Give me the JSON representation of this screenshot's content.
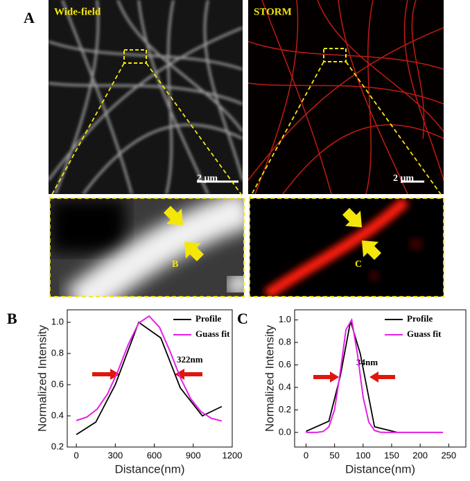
{
  "figure": {
    "panel_a": {
      "label": "A",
      "left_title": "Wide-field",
      "right_title": "STORM",
      "scale_left": "2 μm",
      "scale_right": "2 μm",
      "zoom_left_label": "B",
      "zoom_right_label": "C"
    }
  },
  "chart_data": [
    {
      "type": "line",
      "panel_label": "B",
      "xlabel": "Distance(nm)",
      "ylabel": "Normalized Intensity",
      "annotation": "322nm",
      "xlim": [
        -70,
        1200
      ],
      "ylim": [
        0.2,
        1.08
      ],
      "xticks": [
        0,
        300,
        600,
        900,
        1200
      ],
      "yticks": [
        0.2,
        0.4,
        0.6,
        0.8,
        {
          "value": 1,
          "label": "1.0"
        }
      ],
      "legend": "upper right",
      "series": [
        {
          "name": "Profile",
          "color": "#000000",
          "x": [
            0,
            150,
            300,
            480,
            650,
            800,
            970,
            1120
          ],
          "values": [
            0.28,
            0.36,
            0.6,
            1.0,
            0.9,
            0.58,
            0.4,
            0.46
          ]
        },
        {
          "name": "Guass fit",
          "color": "#e61ee6",
          "x": [
            0,
            80,
            160,
            240,
            320,
            400,
            480,
            560,
            640,
            720,
            800,
            880,
            960,
            1040,
            1120
          ],
          "values": [
            0.37,
            0.392,
            0.443,
            0.54,
            0.687,
            0.858,
            0.995,
            1.04,
            0.968,
            0.816,
            0.646,
            0.51,
            0.426,
            0.384,
            0.367
          ]
        }
      ]
    },
    {
      "type": "line",
      "panel_label": "C",
      "xlabel": "Distance(nm)",
      "ylabel": "Normalized Intensity",
      "annotation": "34nm",
      "xlim": [
        -20,
        280
      ],
      "ylim": [
        -0.13,
        1.09
      ],
      "xticks": [
        0,
        50,
        100,
        150,
        200,
        250
      ],
      "yticks": [
        {
          "value": 0,
          "label": "0.0"
        },
        0.2,
        0.4,
        0.6,
        0.8,
        {
          "value": 1,
          "label": "1.0"
        }
      ],
      "legend": "upper right",
      "series": [
        {
          "name": "Profile",
          "color": "#000000",
          "x": [
            0,
            40,
            60,
            78,
            95,
            120,
            160
          ],
          "values": [
            0.01,
            0.1,
            0.5,
            0.99,
            0.7,
            0.05,
            0.0
          ]
        },
        {
          "name": "Guass fit",
          "color": "#e61ee6",
          "x": [
            0,
            10,
            20,
            30,
            40,
            50,
            60,
            70,
            80,
            90,
            100,
            110,
            120,
            130,
            140,
            160,
            200,
            240
          ],
          "values": [
            0,
            0,
            0.001,
            0.008,
            0.049,
            0.202,
            0.537,
            0.915,
            1.0,
            0.7,
            0.315,
            0.091,
            0.017,
            0.002,
            0,
            0,
            0,
            0
          ]
        }
      ]
    }
  ]
}
